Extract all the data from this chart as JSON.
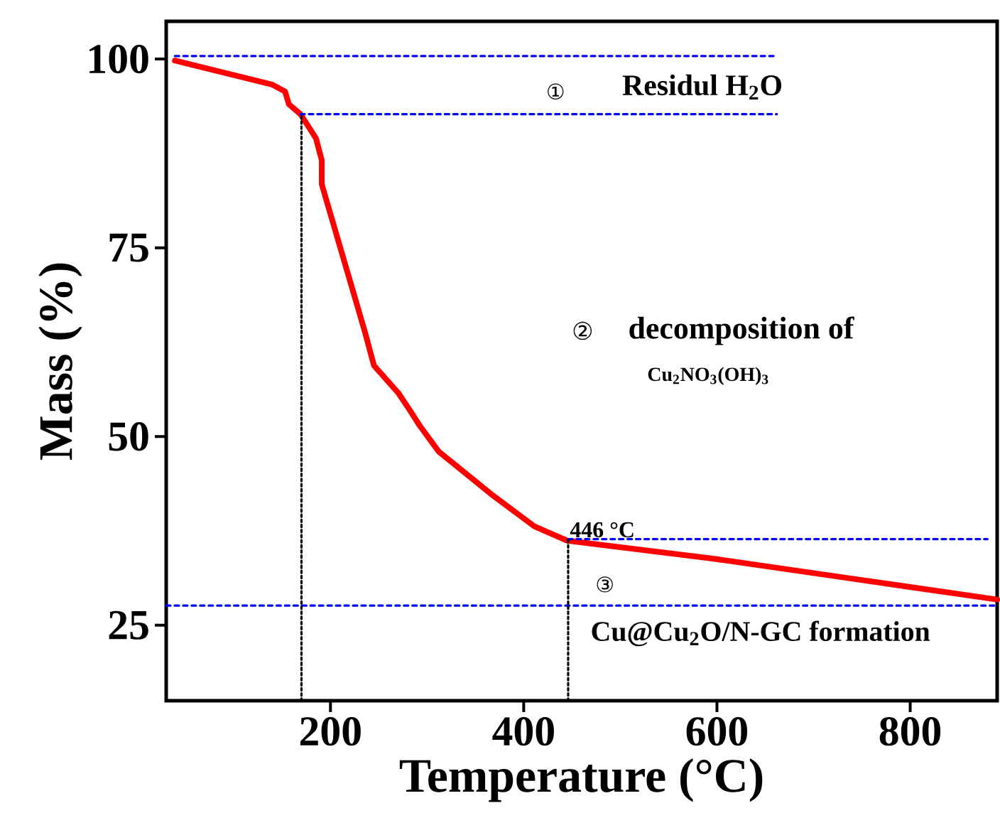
{
  "chart_data": {
    "type": "line",
    "xlabel": "Temperature (°C)",
    "ylabel": "Mass (%)",
    "xlim": [
      30,
      890
    ],
    "ylim": [
      15,
      105
    ],
    "xticks": [
      200,
      400,
      600,
      800
    ],
    "yticks": [
      25,
      50,
      75,
      100
    ],
    "marker": "none",
    "series": [
      {
        "color": "#ff0000",
        "line_style": "solid",
        "x": [
          39,
          140,
          153,
          157,
          169,
          185,
          191,
          191,
          236,
          245,
          270,
          281,
          292,
          312,
          366,
          411,
          445,
          597,
          738,
          890
        ],
        "values": [
          99.8,
          96.6,
          95.7,
          94.0,
          92.7,
          89.5,
          86.6,
          83.4,
          63.7,
          59.4,
          55.8,
          53.7,
          51.5,
          48.0,
          42.4,
          38.1,
          36.2,
          33.8,
          31.2,
          28.4
        ]
      },
      {
        "color": "#0000ff",
        "line_style": "dashed",
        "x": [
          39,
          662
        ],
        "values": [
          100.4,
          100.4
        ]
      },
      {
        "color": "#0000ff",
        "line_style": "dashed",
        "x": [
          169,
          662
        ],
        "values": [
          92.7,
          92.7
        ]
      },
      {
        "color": "#0000ff",
        "line_style": "dashed",
        "x": [
          446,
          880
        ],
        "values": [
          36.4,
          36.4
        ]
      },
      {
        "color": "#0000ff",
        "line_style": "dashed",
        "x": [
          30,
          890
        ],
        "values": [
          27.6,
          27.6
        ]
      },
      {
        "color": "#000000",
        "line_style": "dotted",
        "x": [
          170,
          170
        ],
        "values": [
          15,
          92.7
        ]
      },
      {
        "color": "#000000",
        "line_style": "dotted",
        "x": [
          446,
          446
        ],
        "values": [
          15,
          36.4
        ]
      }
    ],
    "annotations": [
      "①",
      "Residul H$_{2}$O",
      "②",
      "decomposition of",
      "Cu$_{2}$NO$_{3}$(OH)$_{3}$",
      {
        "text": "446 °C",
        "x": 446,
        "y": 36.4
      },
      "③",
      "Cu@Cu$_{2}$O/N-GC formation"
    ]
  }
}
